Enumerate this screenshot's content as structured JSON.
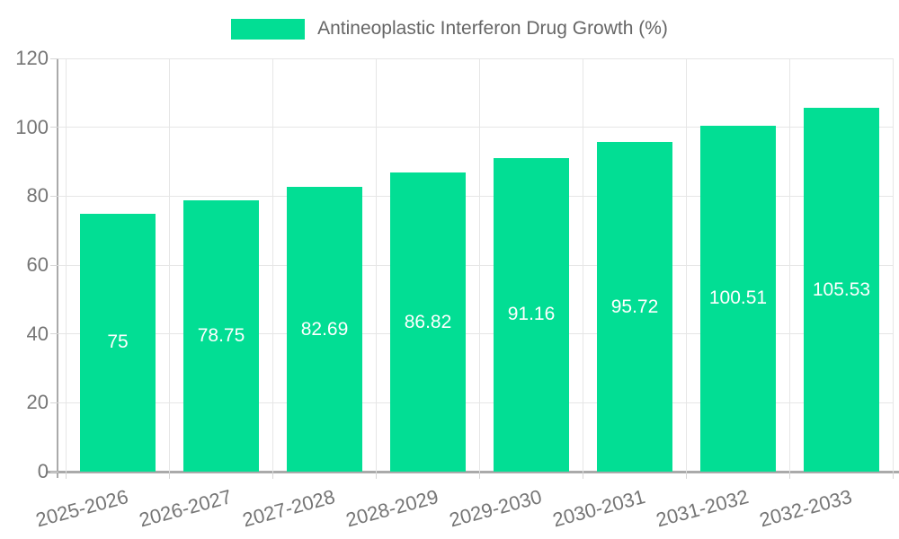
{
  "chart": {
    "legend": {
      "label": "Antineoplastic Interferon Drug Growth (%)",
      "swatch": "legend-swatch"
    },
    "colors": {
      "bar": "#02de94",
      "value_label": "#ffffff",
      "grid": "#e6e6e6",
      "tick": "#d6d6d6",
      "axis": "#aaaaaa",
      "tick_label": "#757575",
      "legend_text": "#666666",
      "background": "#ffffff"
    }
  },
  "chart_data": {
    "type": "bar",
    "title": "Antineoplastic Interferon Drug Growth (%)",
    "categories": [
      "2025-2026",
      "2026-2027",
      "2027-2028",
      "2028-2029",
      "2029-2030",
      "2030-2031",
      "2031-2032",
      "2032-2033"
    ],
    "series": [
      {
        "name": "Antineoplastic Interferon Drug Growth (%)",
        "values": [
          75,
          78.75,
          82.69,
          86.82,
          91.16,
          95.72,
          100.51,
          105.53
        ]
      }
    ],
    "value_labels": [
      "75",
      "78.75",
      "82.69",
      "86.82",
      "91.16",
      "95.72",
      "100.51",
      "105.53"
    ],
    "xlabel": "",
    "ylabel": "",
    "ylim": [
      0,
      120
    ],
    "yticks": [
      0,
      20,
      40,
      60,
      80,
      100,
      120
    ],
    "grid": true,
    "legend_position": "top",
    "value_label_position": "center"
  }
}
